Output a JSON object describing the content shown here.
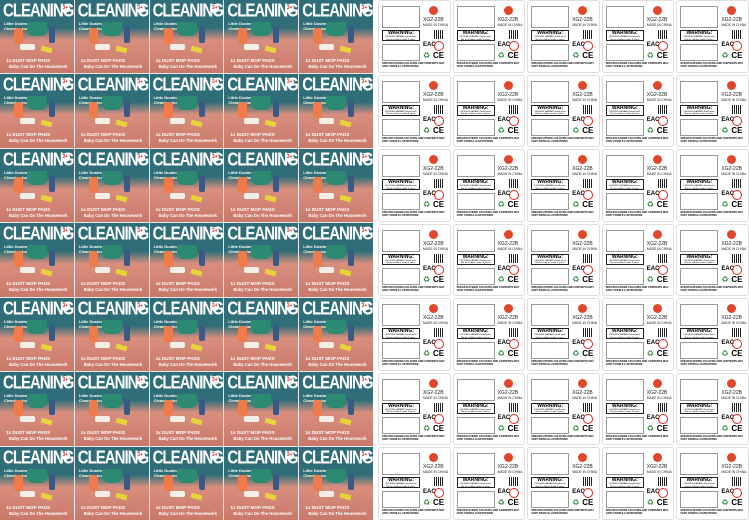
{
  "front_card": {
    "title": "CLEANING",
    "age": "3+",
    "brand": "Little Dustman",
    "subtitle": "Cleaning tools",
    "pads": "1x DUST MOP PADS",
    "slogan": "Baby Can Do The Housework"
  },
  "back_card": {
    "model": "XG2-22B",
    "made_in": "MADE IN CHINA",
    "warning_title": "WARNING:",
    "warning_text": "CHOKING HAZARD-Small parts. Not for children under 3 years.",
    "eac": "EAC",
    "ce": "CE",
    "spec": "SPECIFICATIONS COLOURS AND CONTENTS MAY VARY FROM ILLUSTRATIONS"
  },
  "layout_info": {
    "rows": 7,
    "columns": 5
  },
  "colors": {
    "teal": "#2f6e78",
    "salmon": "#d98f7e",
    "logo": "#e0462a"
  }
}
